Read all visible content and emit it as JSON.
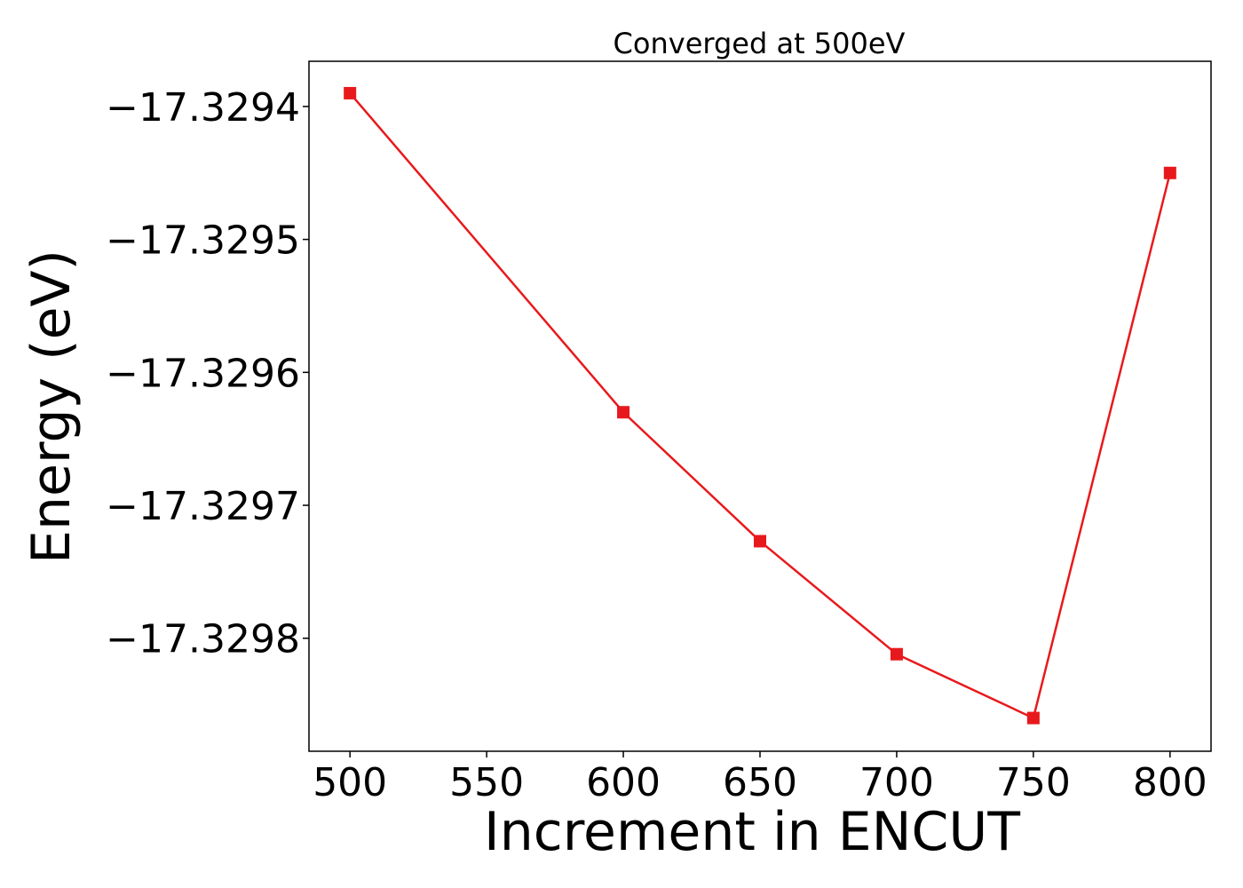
{
  "chart_data": {
    "type": "line",
    "title": "Converged at 500eV",
    "xlabel": "Increment in ENCUT",
    "ylabel": "Energy (eV)",
    "x": [
      500,
      600,
      650,
      700,
      750,
      800
    ],
    "series": [
      {
        "values": [
          -17.32939,
          -17.32963,
          -17.329727,
          -17.329812,
          -17.32986,
          -17.32945
        ],
        "color": "#e8191c",
        "marker": "square"
      }
    ],
    "xlim": [
      485,
      815
    ],
    "ylim": [
      -17.329885,
      -17.329366
    ],
    "xticks": [
      500,
      550,
      600,
      650,
      700,
      750,
      800
    ],
    "xtick_labels": [
      "500",
      "550",
      "600",
      "650",
      "700",
      "750",
      "800"
    ],
    "yticks": [
      -17.3294,
      -17.3295,
      -17.3296,
      -17.3297,
      -17.3298
    ],
    "ytick_labels": [
      "−17.3294",
      "−17.3295",
      "−17.3296",
      "−17.3297",
      "−17.3298"
    ],
    "grid": false,
    "legend": "none"
  }
}
